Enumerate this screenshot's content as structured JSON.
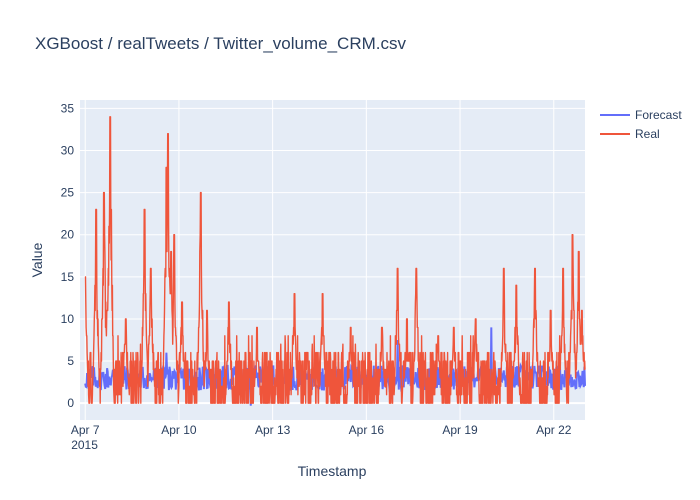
{
  "title": "XGBoost / realTweets / Twitter_volume_CRM.csv",
  "chart_data": {
    "type": "line",
    "xlabel": "Timestamp",
    "ylabel": "Value",
    "ylim": [
      -2,
      36
    ],
    "xlim_days": [
      "Apr 6 20:00 2015",
      "Apr 23 2015"
    ],
    "yticks": [
      0,
      5,
      10,
      15,
      20,
      25,
      30,
      35
    ],
    "xticks": [
      {
        "label": "Apr 7",
        "sub": "2015",
        "day": 7
      },
      {
        "label": "Apr 10",
        "sub": "",
        "day": 10
      },
      {
        "label": "Apr 13",
        "sub": "",
        "day": 13
      },
      {
        "label": "Apr 16",
        "sub": "",
        "day": 16
      },
      {
        "label": "Apr 19",
        "sub": "",
        "day": 19
      },
      {
        "label": "Apr 22",
        "sub": "",
        "day": 22
      }
    ],
    "grid": true,
    "legend_position": "top-right",
    "series": [
      {
        "name": "Forecast",
        "color": "#636efa",
        "peaks": [
          [
            12.3,
            -0.3
          ],
          [
            17.0,
            7.5
          ],
          [
            20.0,
            9.0
          ],
          [
            9.6,
            6.0
          ]
        ]
      },
      {
        "name": "Real",
        "color": "#ef553b",
        "peaks": [
          [
            7.0,
            15
          ],
          [
            7.35,
            23
          ],
          [
            7.6,
            25
          ],
          [
            7.7,
            11
          ],
          [
            7.8,
            34
          ],
          [
            8.3,
            10
          ],
          [
            8.9,
            23
          ],
          [
            9.1,
            16
          ],
          [
            9.6,
            28
          ],
          [
            9.65,
            32
          ],
          [
            9.75,
            18
          ],
          [
            9.85,
            20
          ],
          [
            10.1,
            12
          ],
          [
            10.7,
            25
          ],
          [
            10.9,
            11
          ],
          [
            11.6,
            12
          ],
          [
            12.5,
            9
          ],
          [
            13.7,
            13
          ],
          [
            14.6,
            13
          ],
          [
            15.5,
            9
          ],
          [
            16.5,
            9
          ],
          [
            17.0,
            16
          ],
          [
            17.3,
            10
          ],
          [
            17.6,
            16
          ],
          [
            18.3,
            8
          ],
          [
            18.8,
            9
          ],
          [
            19.5,
            10
          ],
          [
            20.4,
            16
          ],
          [
            20.8,
            14
          ],
          [
            21.4,
            16
          ],
          [
            21.9,
            11
          ],
          [
            22.3,
            16
          ],
          [
            22.6,
            20
          ],
          [
            22.8,
            18
          ],
          [
            22.9,
            11
          ]
        ]
      }
    ]
  }
}
